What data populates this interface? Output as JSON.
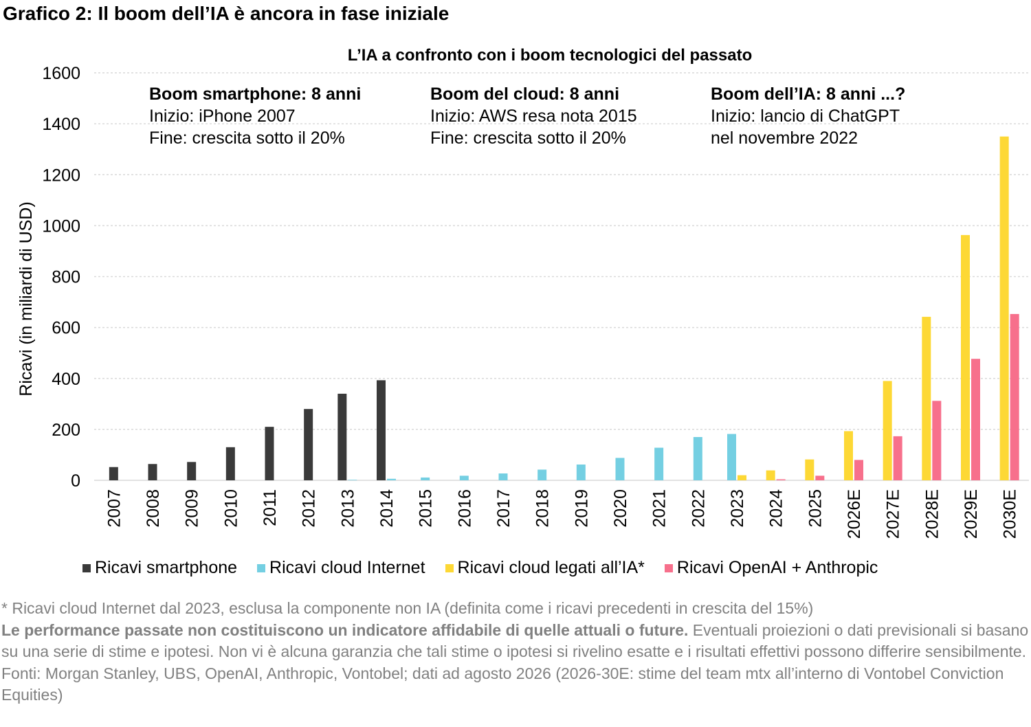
{
  "page_title": "Grafico 2: Il boom dell’IA è ancora in fase iniziale",
  "chart_data": {
    "type": "bar",
    "title": "L’IA a confronto con i boom tecnologici del passato",
    "ylabel": "Ricavi (in miliardi di USD)",
    "xlabel": "",
    "ylim": [
      0,
      1600
    ],
    "yticks": [
      0,
      200,
      400,
      600,
      800,
      1000,
      1200,
      1400,
      1600
    ],
    "ytick_labels": [
      "0",
      "200",
      "400",
      "600",
      "800",
      "1000",
      "1200",
      "1400",
      "1600"
    ],
    "grid": true,
    "legend_position": "bottom",
    "categories": [
      "2007",
      "2008",
      "2009",
      "2010",
      "2011",
      "2012",
      "2013",
      "2014",
      "2015",
      "2016",
      "2017",
      "2018",
      "2019",
      "2020",
      "2021",
      "2022",
      "2023",
      "2024",
      "2025",
      "2026E",
      "2027E",
      "2028E",
      "2029E",
      "2030E"
    ],
    "series": [
      {
        "name": "Ricavi smartphone",
        "color": "#3a3a3a",
        "values": [
          52,
          64,
          72,
          130,
          210,
          280,
          340,
          393,
          null,
          null,
          null,
          null,
          null,
          null,
          null,
          null,
          null,
          null,
          null,
          null,
          null,
          null,
          null,
          null
        ]
      },
      {
        "name": "Ricavi cloud Internet",
        "color": "#74cfe2",
        "values": [
          null,
          null,
          null,
          null,
          null,
          null,
          2,
          6,
          11,
          18,
          27,
          42,
          62,
          88,
          128,
          170,
          182,
          null,
          null,
          null,
          null,
          null,
          null,
          null
        ]
      },
      {
        "name": "Ricavi cloud legati all’IA*",
        "color": "#fdd835",
        "values": [
          null,
          null,
          null,
          null,
          null,
          null,
          null,
          null,
          null,
          null,
          null,
          null,
          null,
          null,
          null,
          null,
          20,
          39,
          82,
          193,
          390,
          642,
          963,
          1350
        ]
      },
      {
        "name": "Ricavi OpenAI + Anthropic",
        "color": "#f7708c",
        "values": [
          null,
          null,
          null,
          null,
          null,
          null,
          null,
          null,
          null,
          null,
          null,
          null,
          null,
          null,
          null,
          null,
          null,
          4,
          18,
          80,
          173,
          312,
          477,
          653
        ]
      }
    ]
  },
  "annotations": [
    {
      "heading": "Boom smartphone: 8 anni",
      "lines": [
        "Inizio: iPhone 2007",
        "Fine: crescita sotto il 20%"
      ]
    },
    {
      "heading": "Boom del cloud: 8 anni",
      "lines": [
        "Inizio: AWS resa nota 2015",
        "Fine: crescita sotto il 20%"
      ]
    },
    {
      "heading": "Boom dell’IA: 8 anni ...?",
      "lines": [
        "Inizio: lancio di ChatGPT",
        "nel novembre 2022"
      ]
    }
  ],
  "footnotes": {
    "asterisk_note": "* Ricavi cloud Internet dal 2023, esclusa la componente non IA (definita come i ricavi precedenti in crescita del 15%)",
    "disclaimer_bold": "Le performance passate non costituiscono un indicatore affidabile di quelle attuali o future.",
    "disclaimer_text": " Eventuali proiezioni o dati previsionali si basano su una serie di stime e ipotesi. Non vi è alcuna garanzia che tali stime o ipotesi si rivelino esatte e i risultati effettivi possono differire sensibilmente.",
    "sources": "Fonti: Morgan Stanley, UBS, OpenAI, Anthropic, Vontobel; dati ad agosto 2026 (2026-30E: stime del team mtx all’interno di Vontobel Conviction Equities)"
  }
}
